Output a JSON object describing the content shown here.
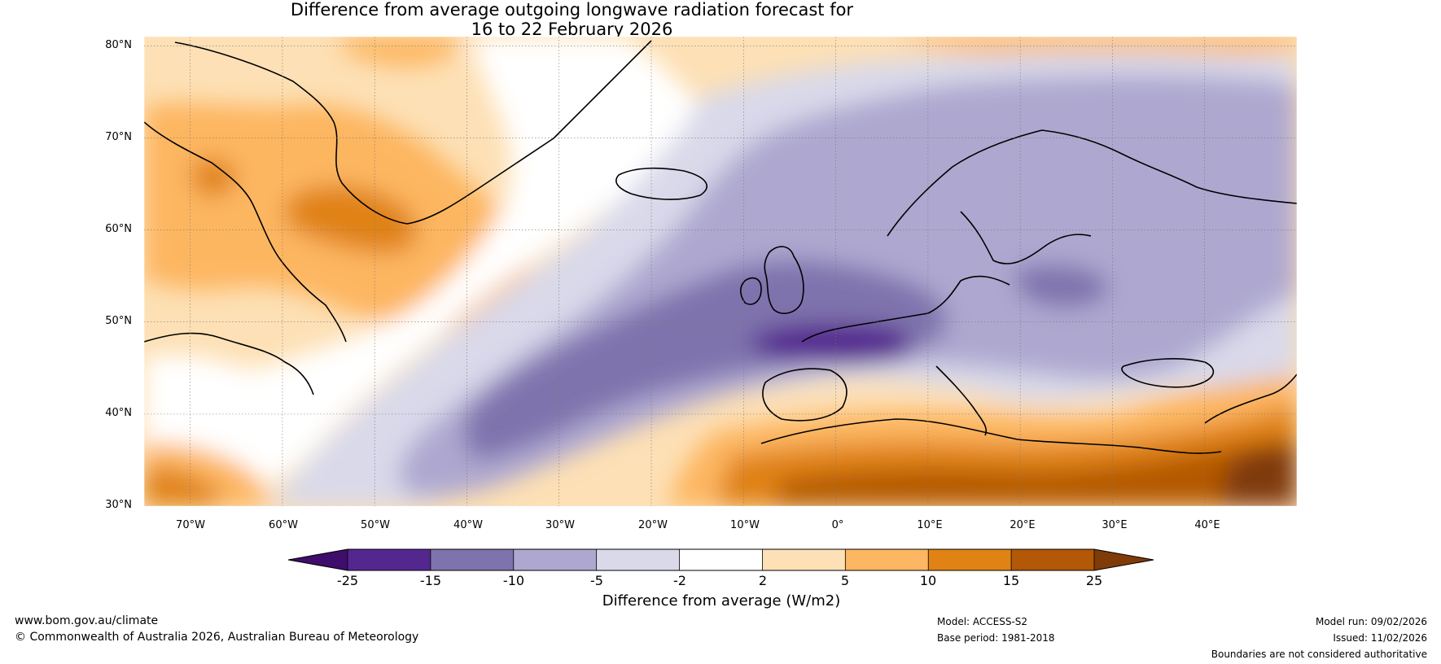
{
  "title": {
    "line1": "Difference from average outgoing longwave radiation forecast for",
    "line2": "16 to 22 February 2026"
  },
  "map": {
    "latitude_labels": [
      "80°N",
      "70°N",
      "60°N",
      "50°N",
      "40°N",
      "30°N"
    ],
    "longitude_labels": [
      "70°W",
      "60°W",
      "50°W",
      "40°W",
      "30°W",
      "20°W",
      "10°W",
      "0°",
      "10°E",
      "20°E",
      "30°E",
      "40°E"
    ],
    "extent": {
      "lon_min": -75,
      "lon_max": 50,
      "lat_min": 30,
      "lat_max": 81
    }
  },
  "colorbar": {
    "ticks": [
      "-25",
      "-15",
      "-10",
      "-5",
      "-2",
      "2",
      "5",
      "10",
      "15",
      "25"
    ],
    "colors": [
      "#3f0d6b",
      "#54278f",
      "#7f73ad",
      "#aea8d0",
      "#d9d9ea",
      "#ffffff",
      "#fde0b5",
      "#fdb661",
      "#e08214",
      "#b35806",
      "#7f3b08"
    ],
    "label": "Difference from average (W/m2)"
  },
  "footer": {
    "website": "www.bom.gov.au/climate",
    "copyright": "© Commonwealth of Australia 2026, Australian Bureau of Meteorology",
    "model": "Model: ACCESS-S2",
    "base_period": "Base period: 1981-2018",
    "model_run": "Model run: 09/02/2026",
    "issued": "Issued: 11/02/2026",
    "disclaimer": "Boundaries are not considered authoritative"
  }
}
